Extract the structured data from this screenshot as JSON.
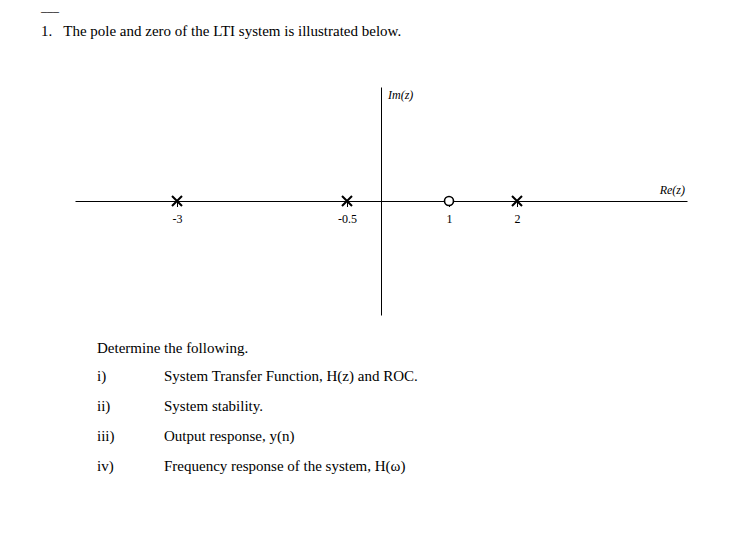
{
  "chart_data": {
    "type": "scatter",
    "title": "1.   The pole and zero of the LTI system is illustrated below.",
    "annotations": [
      "___"
    ],
    "subtitle": "Determine the following.",
    "list_items": [
      [
        "i)",
        "System Transfer Function, H(z) and ROC."
      ],
      [
        "ii)",
        "System stability."
      ],
      [
        "iii)",
        "Output response, y(n)"
      ],
      [
        "iv)",
        "Frequency response of the system, H(ω)"
      ]
    ],
    "x_label": "Re(z)",
    "y_label": "Im(z)",
    "xlim": [
      -4.5,
      4.5
    ],
    "ylim": [
      -1.5,
      1.5
    ],
    "xticks": [
      -3,
      -0.5,
      2,
      1
    ],
    "tick_labels": "x",
    "series": [
      {
        "marker": "x",
        "color": "#000000",
        "x": [
          -3,
          -0.5,
          2
        ],
        "values": [
          0,
          0,
          0
        ]
      },
      {
        "marker": "circle",
        "color": "#000000",
        "x": [
          1
        ],
        "values": [
          0
        ]
      }
    ]
  }
}
